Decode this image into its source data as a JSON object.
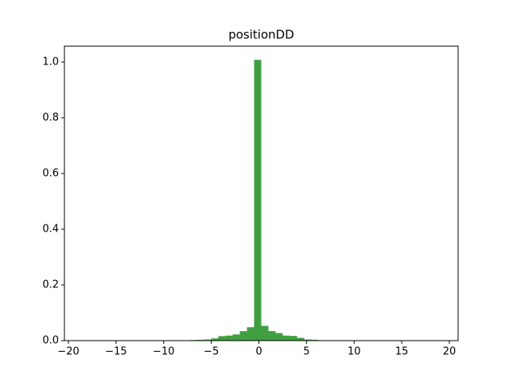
{
  "chart_data": {
    "type": "histogram",
    "title": "positionDD",
    "bins": [
      -18.54,
      -17.79,
      -17.04,
      -16.29,
      -15.53,
      -14.78,
      -14.03,
      -13.28,
      -12.53,
      -11.78,
      -11.02,
      -10.27,
      -9.52,
      -8.77,
      -8.02,
      -7.27,
      -6.51,
      -5.76,
      -5.01,
      -4.26,
      -3.51,
      -2.76,
      -2.0,
      -1.25,
      -0.5,
      0.25,
      1.0,
      1.75,
      2.5,
      3.26,
      4.01,
      4.76,
      5.51,
      6.26,
      7.01,
      7.77,
      8.52,
      9.27,
      10.02,
      10.77,
      11.52,
      12.28,
      13.03,
      13.78,
      14.53,
      15.28,
      16.04,
      16.79,
      17.54,
      18.29,
      19.04
    ],
    "values": [
      0,
      0,
      0,
      0,
      0,
      0,
      0,
      0,
      0,
      0,
      0,
      0,
      0,
      0,
      0.001,
      0.002,
      0.003,
      0.004,
      0.008,
      0.016,
      0.018,
      0.022,
      0.034,
      0.048,
      1.008,
      0.053,
      0.034,
      0.027,
      0.018,
      0.017,
      0.01,
      0.004,
      0.003,
      0.001,
      0,
      0,
      0,
      0,
      0,
      0,
      0,
      0,
      0,
      0,
      0,
      0,
      0,
      0,
      0,
      0
    ],
    "color": "#3f9f3f",
    "xlim": [
      -20.42,
      20.92
    ],
    "xticks": [
      {
        "value": -20,
        "label": "−20"
      },
      {
        "value": -15,
        "label": "−15"
      },
      {
        "value": -10,
        "label": "−10"
      },
      {
        "value": -5,
        "label": "−5"
      },
      0,
      5,
      10,
      15,
      20
    ],
    "ylim": [
      0,
      1.057
    ],
    "yticks": [
      {
        "value": 0,
        "label": "0.0"
      },
      0.2,
      0.4,
      0.6,
      0.8,
      {
        "value": 1,
        "label": "1.0"
      }
    ],
    "grid": false
  }
}
